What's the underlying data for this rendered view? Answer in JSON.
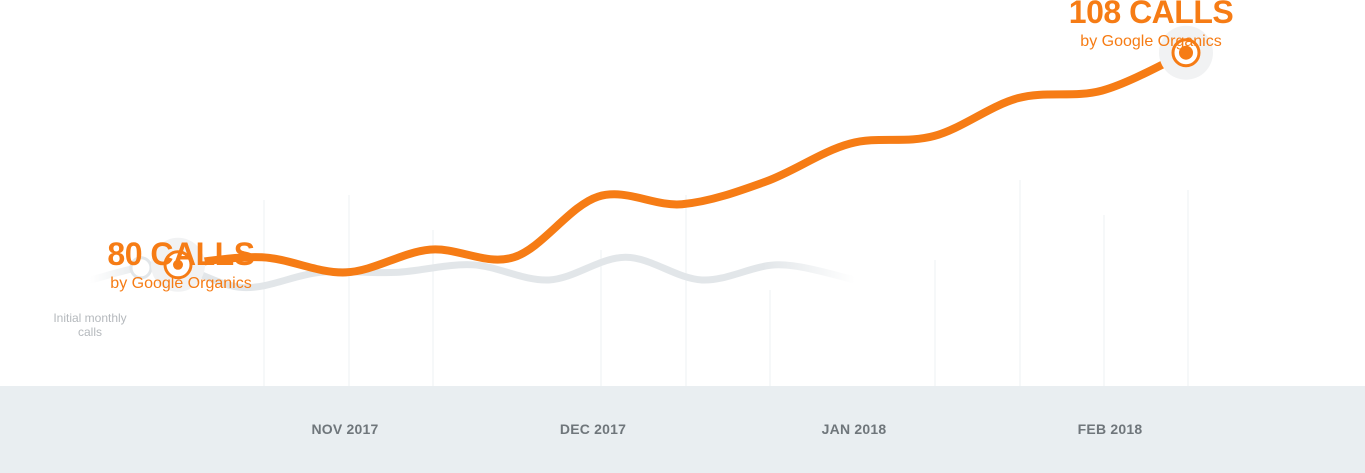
{
  "chart_data": {
    "type": "line",
    "title": "",
    "xlabel": "",
    "ylabel": "",
    "x_ticks": [
      "NOV 2017",
      "DEC 2017",
      "JAN 2018",
      "FEB 2018"
    ],
    "ylim": [
      64,
      111
    ],
    "series": [
      {
        "role": "primary",
        "color": "#f67c15",
        "values": [
          80,
          81,
          79,
          82,
          81,
          89,
          88,
          91,
          96,
          97,
          102,
          103,
          108
        ]
      },
      {
        "role": "baseline",
        "color": "#e2e6e9",
        "values": [
          78,
          80,
          77,
          79,
          79,
          80,
          78,
          81,
          78,
          80,
          78
        ]
      }
    ],
    "annotations": {
      "start": {
        "value": "80 CALLS",
        "sub": "by Google Organics"
      },
      "end": {
        "value": "108 CALLS",
        "sub": "by Google Organics"
      },
      "baseline_note": "Initial monthly calls"
    }
  }
}
